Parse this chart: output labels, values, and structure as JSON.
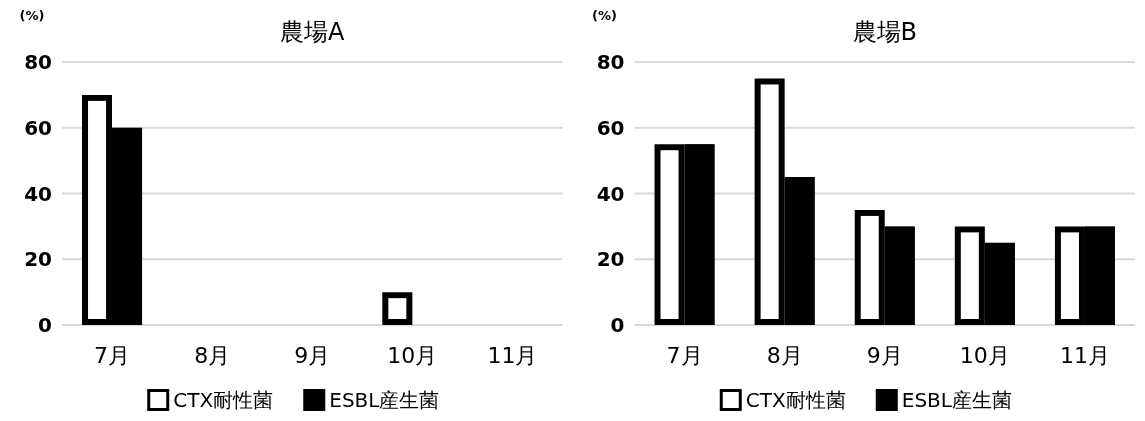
{
  "chart_data": [
    {
      "type": "bar",
      "title": "農場A",
      "ylabel": "(%)",
      "categories": [
        "7月",
        "8月",
        "9月",
        "10月",
        "11月"
      ],
      "series": [
        {
          "name": "CTX耐性菌",
          "color": "#ffffff",
          "values": [
            70,
            0,
            0,
            10,
            0
          ]
        },
        {
          "name": "ESBL産生菌",
          "color": "#000000",
          "values": [
            60,
            0,
            0,
            0,
            0
          ]
        }
      ],
      "ylim": [
        0,
        80
      ],
      "yticks": [
        0,
        20,
        40,
        60,
        80
      ],
      "grid": "y",
      "legend": "bottom"
    },
    {
      "type": "bar",
      "title": "農場B",
      "ylabel": "(%)",
      "categories": [
        "7月",
        "8月",
        "9月",
        "10月",
        "11月"
      ],
      "series": [
        {
          "name": "CTX耐性菌",
          "color": "#ffffff",
          "values": [
            55,
            75,
            35,
            30,
            30
          ]
        },
        {
          "name": "ESBL産生菌",
          "color": "#000000",
          "values": [
            55,
            45,
            30,
            25,
            30
          ]
        }
      ],
      "ylim": [
        0,
        80
      ],
      "yticks": [
        0,
        20,
        40,
        60,
        80
      ],
      "grid": "y",
      "legend": "bottom"
    }
  ]
}
